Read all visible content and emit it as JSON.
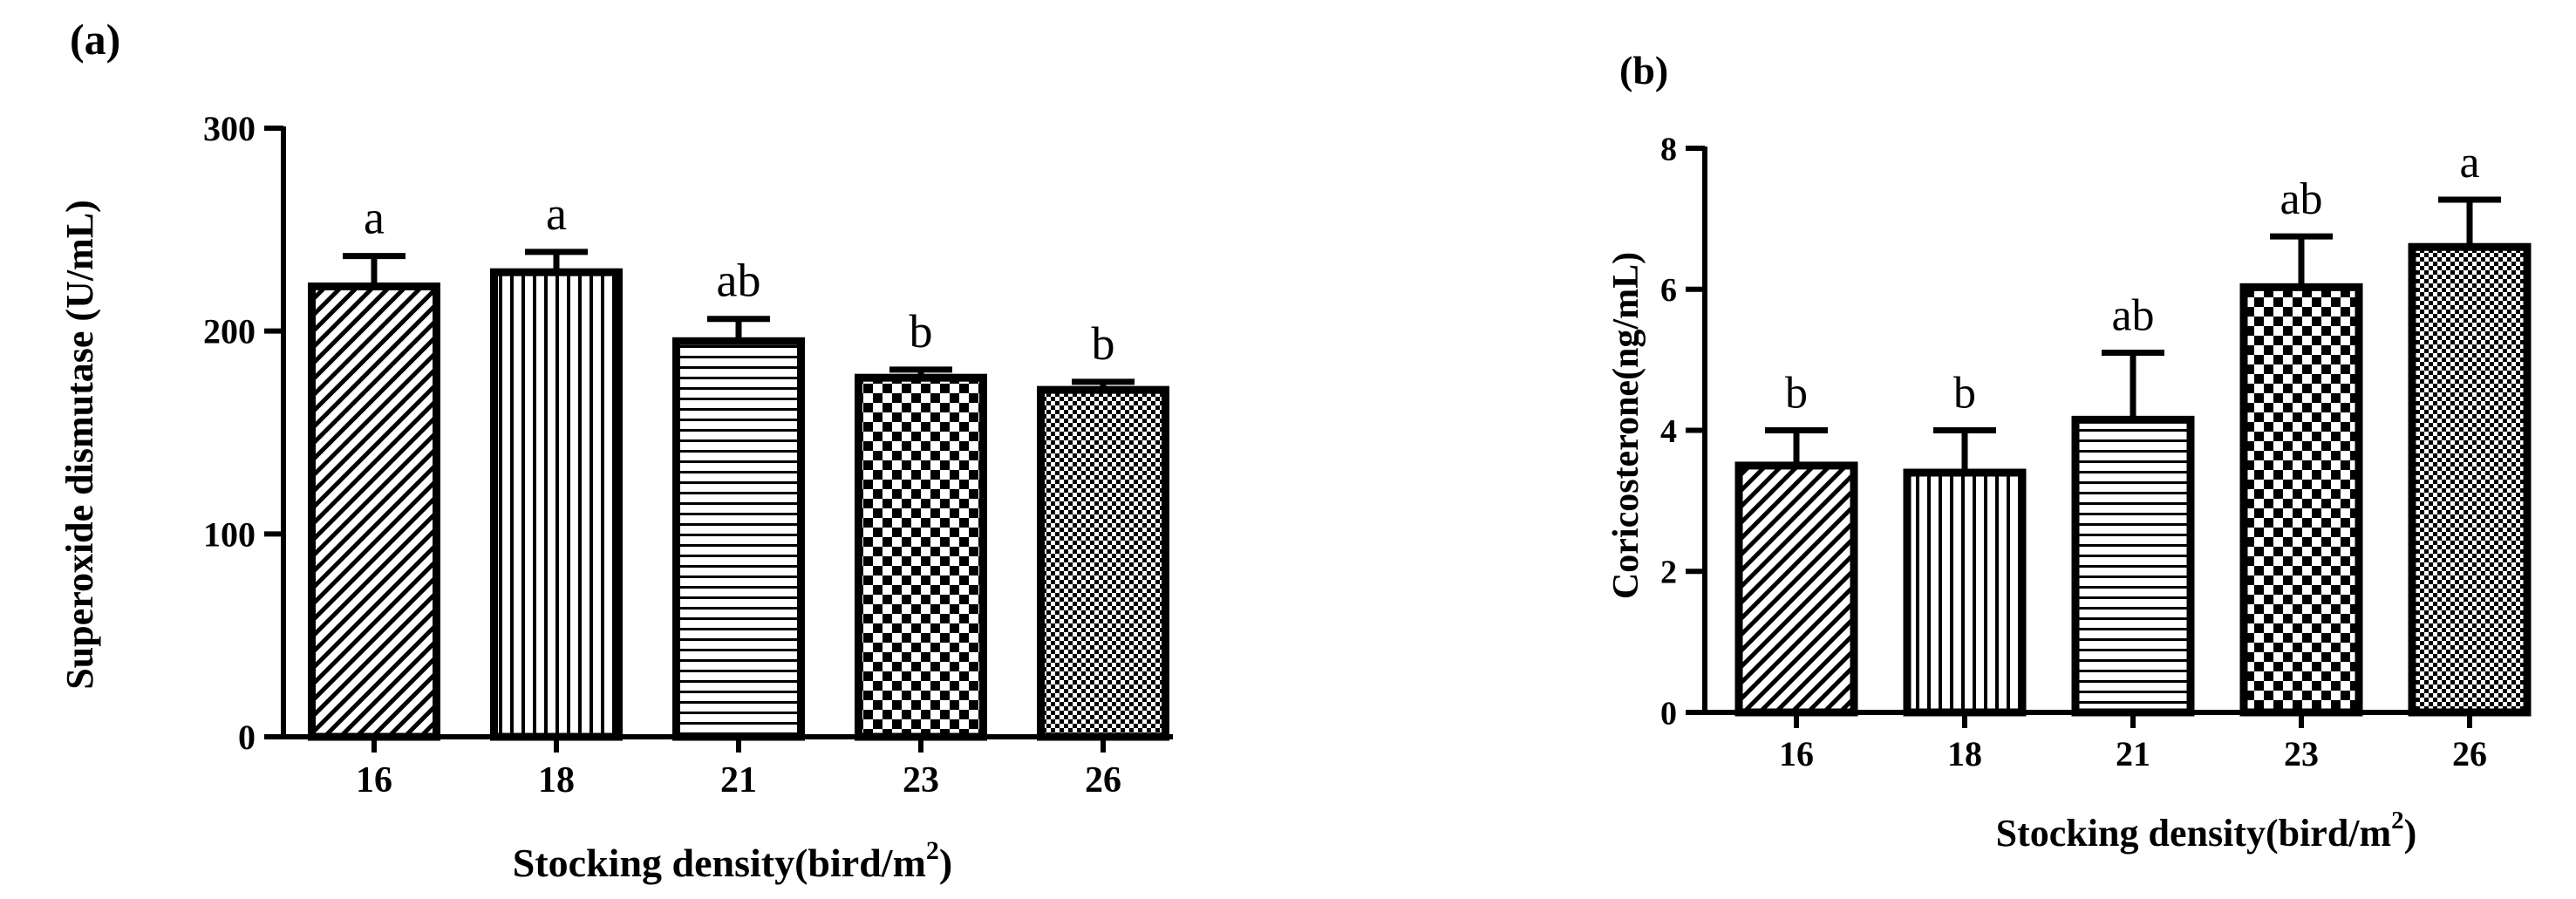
{
  "chart_data": [
    {
      "type": "bar",
      "panel_label": "(a)",
      "categories": [
        "16",
        "18",
        "21",
        "23",
        "26"
      ],
      "values": [
        222,
        229,
        195,
        177,
        171
      ],
      "errors": [
        15,
        10,
        11,
        4,
        4
      ],
      "sig_letters": [
        "a",
        "a",
        "ab",
        "b",
        "b"
      ],
      "patterns": [
        "diag",
        "vert",
        "horiz",
        "checker",
        "fine"
      ],
      "xlabel_main": "Stocking density(bird/m",
      "xlabel_sup": "2",
      "xlabel_end": ")",
      "ylabel": "Superoxide dismutase (U/mL)",
      "ylim": [
        0,
        300
      ],
      "yticks": [
        "0",
        "100",
        "200",
        "300"
      ],
      "grid": false
    },
    {
      "type": "bar",
      "panel_label": "(b)",
      "categories": [
        "16",
        "18",
        "21",
        "23",
        "26"
      ],
      "values": [
        3.5,
        3.4,
        4.15,
        6.03,
        6.6
      ],
      "errors": [
        0.5,
        0.6,
        0.95,
        0.72,
        0.67
      ],
      "sig_letters": [
        "b",
        "b",
        "ab",
        "ab",
        "a"
      ],
      "patterns": [
        "diag",
        "vert",
        "horiz",
        "checker",
        "fine"
      ],
      "xlabel_main": "Stocking density(bird/m",
      "xlabel_sup": "2",
      "xlabel_end": ")",
      "ylabel": "Coricosterone(ng/mL)",
      "ylim": [
        0,
        8
      ],
      "yticks": [
        "0",
        "2",
        "4",
        "6",
        "8"
      ],
      "grid": false
    }
  ]
}
